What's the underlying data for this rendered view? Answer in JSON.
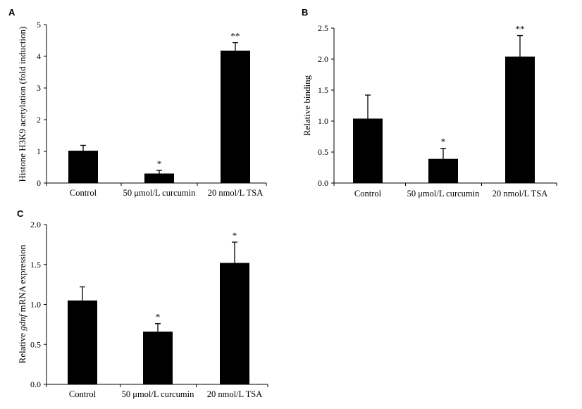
{
  "colors": {
    "bar": "#000000",
    "axis": "#000000",
    "background": "#ffffff"
  },
  "chart_data": [
    {
      "panel": "A",
      "type": "bar",
      "categories": [
        "Control",
        "50 μmol/L curcumin",
        "20 nmol/L TSA"
      ],
      "values": [
        1.02,
        0.3,
        4.18
      ],
      "errors": [
        0.17,
        0.1,
        0.25
      ],
      "significance": [
        "",
        "*",
        "**"
      ],
      "ylabel": "Histone H3K9 acetylation (fold induction)",
      "ylabel_parts": [],
      "ylim": [
        0,
        5
      ],
      "yticks": [
        "0",
        "1",
        "2",
        "3",
        "4",
        "5"
      ],
      "grid": false
    },
    {
      "panel": "B",
      "type": "bar",
      "categories": [
        "Control",
        "50 μmol/L curcumin",
        "20 nmol/L TSA"
      ],
      "values": [
        1.04,
        0.39,
        2.04
      ],
      "errors": [
        0.38,
        0.17,
        0.34
      ],
      "significance": [
        "",
        "*",
        "**"
      ],
      "ylabel": "Relative binding",
      "ylabel_parts": [],
      "ylim": [
        0,
        2.5
      ],
      "yticks": [
        "0.0",
        "0.5",
        "1.0",
        "1.5",
        "2.0",
        "2.5"
      ],
      "grid": false
    },
    {
      "panel": "C",
      "type": "bar",
      "categories": [
        "Control",
        "50 μmol/L curcumin",
        "20 nmol/L TSA"
      ],
      "values": [
        1.05,
        0.66,
        1.52
      ],
      "errors": [
        0.17,
        0.1,
        0.26
      ],
      "significance": [
        "",
        "*",
        "*"
      ],
      "ylabel": "",
      "ylabel_parts": [
        {
          "text": "Relative ",
          "italic": false
        },
        {
          "text": "gdnf",
          "italic": true
        },
        {
          "text": " mRNA expression",
          "italic": false
        }
      ],
      "ylim": [
        0,
        2
      ],
      "yticks": [
        "0.0",
        "0.5",
        "1.0",
        "1.5",
        "2.0"
      ],
      "grid": false
    }
  ]
}
